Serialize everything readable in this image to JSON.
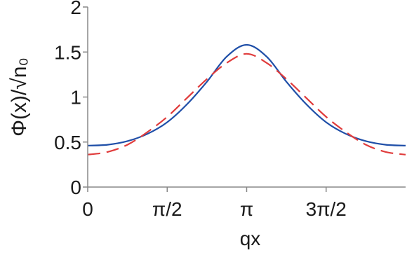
{
  "chart_data": {
    "type": "line",
    "title": "",
    "xlabel": "qx",
    "ylabel": "Φ(x)/√n₀",
    "xlim": [
      0,
      6.2832
    ],
    "ylim": [
      0,
      2
    ],
    "x_ticks": [
      {
        "value": 0,
        "label": "0"
      },
      {
        "value": 1.5708,
        "label": "π/2"
      },
      {
        "value": 3.1416,
        "label": "π"
      },
      {
        "value": 4.7124,
        "label": "3π/2"
      }
    ],
    "y_ticks": [
      {
        "value": 0,
        "label": "0"
      },
      {
        "value": 0.5,
        "label": "0.5"
      },
      {
        "value": 1,
        "label": "1"
      },
      {
        "value": 1.5,
        "label": "1.5"
      },
      {
        "value": 2,
        "label": "2"
      }
    ],
    "grid": false,
    "legend": "none",
    "x": [
      0,
      0.3927,
      0.7854,
      1.1781,
      1.5708,
      1.9635,
      2.3562,
      2.7489,
      3.1416,
      3.5343,
      3.927,
      4.3197,
      4.7124,
      5.1051,
      5.4978,
      5.8905,
      6.2832
    ],
    "series": [
      {
        "style": "solid",
        "color": "#1f4fa8",
        "values": [
          0.46,
          0.47,
          0.51,
          0.59,
          0.72,
          0.92,
          1.17,
          1.45,
          1.58,
          1.45,
          1.17,
          0.92,
          0.72,
          0.59,
          0.51,
          0.47,
          0.46
        ]
      },
      {
        "style": "dashed",
        "color": "#e03c3c",
        "values": [
          0.36,
          0.39,
          0.47,
          0.61,
          0.78,
          0.99,
          1.2,
          1.38,
          1.48,
          1.38,
          1.2,
          0.99,
          0.78,
          0.61,
          0.47,
          0.39,
          0.36
        ]
      }
    ]
  }
}
